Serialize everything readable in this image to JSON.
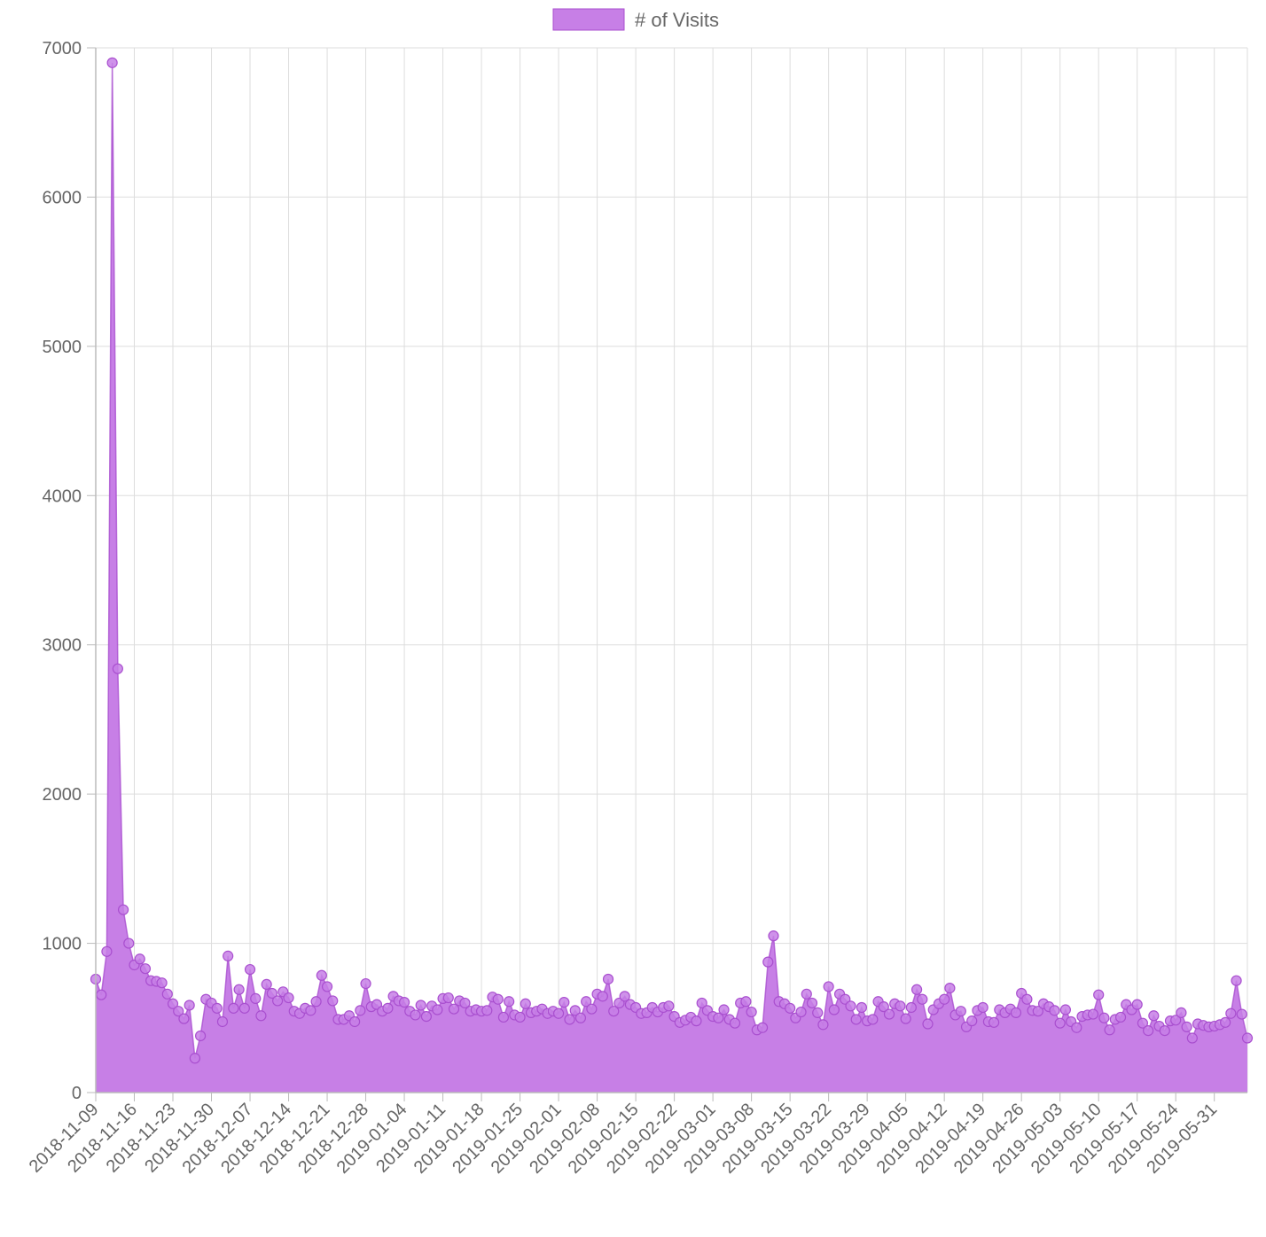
{
  "chart_data": {
    "type": "area",
    "title": "",
    "xlabel": "",
    "ylabel": "",
    "ylim": [
      0,
      7000
    ],
    "y_ticks": [
      0,
      1000,
      2000,
      3000,
      4000,
      5000,
      6000,
      7000
    ],
    "grid": true,
    "legend_position": "top-center",
    "x_tick_labels": [
      "2018-11-09",
      "2018-11-16",
      "2018-11-23",
      "2018-11-30",
      "2018-12-07",
      "2018-12-14",
      "2018-12-21",
      "2018-12-28",
      "2019-01-04",
      "2019-01-11",
      "2019-01-18",
      "2019-01-25",
      "2019-02-01",
      "2019-02-08",
      "2019-02-15",
      "2019-02-22",
      "2019-03-01",
      "2019-03-08",
      "2019-03-15",
      "2019-03-22",
      "2019-03-29",
      "2019-04-05",
      "2019-04-12",
      "2019-04-19",
      "2019-04-26",
      "2019-05-03",
      "2019-05-10",
      "2019-05-17",
      "2019-05-24",
      "2019-05-31"
    ],
    "x_start": "2018-11-09",
    "x_end": "2019-06-06",
    "series": [
      {
        "name": "# of Visits",
        "color": "#c77fe6",
        "line_color": "#a94fcf",
        "values": [
          760,
          655,
          945,
          6900,
          2840,
          1225,
          1000,
          855,
          895,
          830,
          750,
          745,
          735,
          660,
          595,
          545,
          495,
          585,
          230,
          380,
          625,
          600,
          565,
          475,
          915,
          565,
          690,
          565,
          825,
          630,
          515,
          725,
          665,
          615,
          675,
          635,
          545,
          530,
          565,
          550,
          610,
          785,
          710,
          615,
          490,
          490,
          515,
          475,
          550,
          730,
          575,
          590,
          545,
          565,
          645,
          615,
          605,
          545,
          520,
          585,
          510,
          580,
          555,
          630,
          635,
          560,
          615,
          600,
          545,
          555,
          545,
          550,
          640,
          625,
          505,
          610,
          520,
          505,
          595,
          535,
          545,
          560,
          530,
          545,
          530,
          605,
          490,
          550,
          500,
          610,
          560,
          660,
          645,
          760,
          545,
          600,
          645,
          590,
          570,
          530,
          535,
          570,
          540,
          570,
          580,
          510,
          470,
          485,
          505,
          480,
          600,
          550,
          510,
          500,
          555,
          490,
          465,
          600,
          610,
          540,
          420,
          435,
          875,
          1050,
          610,
          595,
          565,
          500,
          540,
          660,
          600,
          535,
          455,
          710,
          555,
          660,
          625,
          580,
          490,
          570,
          480,
          490,
          610,
          575,
          525,
          595,
          580,
          495,
          570,
          690,
          625,
          460,
          555,
          595,
          625,
          700,
          520,
          545,
          440,
          480,
          550,
          570,
          475,
          470,
          555,
          535,
          560,
          535,
          665,
          625,
          550,
          545,
          595,
          575,
          550,
          465,
          555,
          475,
          435,
          510,
          520,
          525,
          655,
          500,
          420,
          490,
          505,
          590,
          555,
          590,
          465,
          415,
          515,
          445,
          415,
          480,
          485,
          535,
          440,
          365,
          460,
          450,
          440,
          445,
          455,
          470,
          530,
          750,
          525,
          365
        ]
      }
    ]
  }
}
